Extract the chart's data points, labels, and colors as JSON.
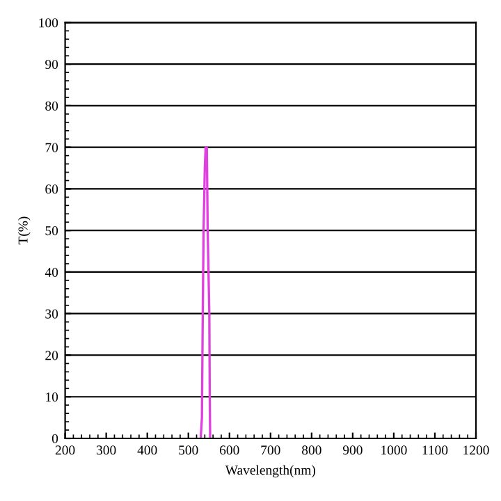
{
  "chart_data": {
    "type": "line",
    "xlabel": "Wavelength(nm)",
    "ylabel": "T(%)",
    "xlim": [
      200,
      1200
    ],
    "xticks": [
      200,
      300,
      400,
      500,
      600,
      700,
      800,
      900,
      1000,
      1100,
      1200
    ],
    "ylim": [
      0,
      100
    ],
    "yticks": [
      0,
      10,
      20,
      30,
      40,
      50,
      60,
      70,
      80,
      90,
      100
    ],
    "grid": "y",
    "legend": false,
    "series": [
      {
        "color": "#e040e0",
        "x": [
          530,
          533,
          535,
          537,
          540,
          542,
          545,
          547,
          549,
          551,
          552,
          553
        ],
        "values": [
          0,
          5,
          30,
          50,
          65,
          70,
          70,
          50,
          40,
          30,
          10,
          0
        ]
      }
    ]
  }
}
